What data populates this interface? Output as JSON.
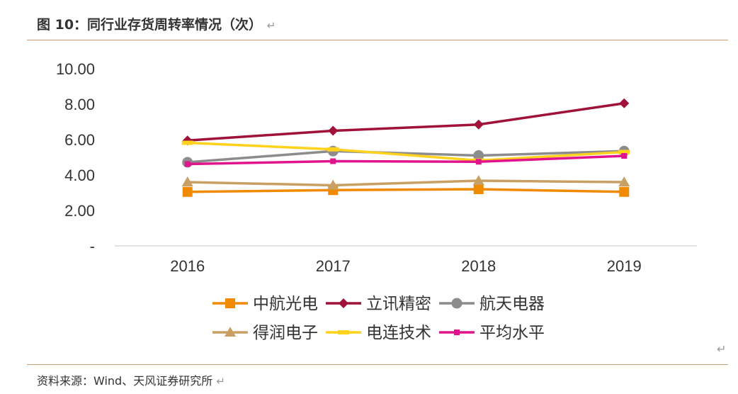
{
  "header": {
    "title": "图 10：同行业存货周转率情况（次）",
    "return_mark": "↵"
  },
  "footer": {
    "source": "资料来源：Wind、天风证券研究所",
    "return_mark": "↵"
  },
  "para_mark": "↵",
  "chart_data": {
    "type": "line",
    "title": "",
    "xlabel": "",
    "ylabel": "",
    "categories": [
      "2016",
      "2017",
      "2018",
      "2019"
    ],
    "ylim": [
      0,
      10
    ],
    "yticks": [
      "-",
      "2.00",
      "4.00",
      "6.00",
      "8.00",
      "10.00"
    ],
    "grid": false,
    "legend_position": "bottom",
    "series": [
      {
        "name": "中航光电",
        "values": [
          3.05,
          3.15,
          3.2,
          3.05
        ],
        "color": "#f08a00",
        "marker": "square"
      },
      {
        "name": "立讯精密",
        "values": [
          5.95,
          6.5,
          6.85,
          8.05
        ],
        "color": "#a0123a",
        "marker": "diamond"
      },
      {
        "name": "航天电器",
        "values": [
          4.72,
          5.35,
          5.1,
          5.35
        ],
        "color": "#8c8c8c",
        "marker": "circle"
      },
      {
        "name": "得润电子",
        "values": [
          3.6,
          3.42,
          3.68,
          3.6
        ],
        "color": "#c8a064",
        "marker": "triangle"
      },
      {
        "name": "电连技术",
        "values": [
          5.82,
          5.45,
          4.82,
          5.3
        ],
        "color": "#ffd21e",
        "marker": "dash"
      },
      {
        "name": "平均水平",
        "values": [
          4.62,
          4.78,
          4.75,
          5.08
        ],
        "color": "#e0148c",
        "marker": "smallsquare"
      }
    ]
  }
}
